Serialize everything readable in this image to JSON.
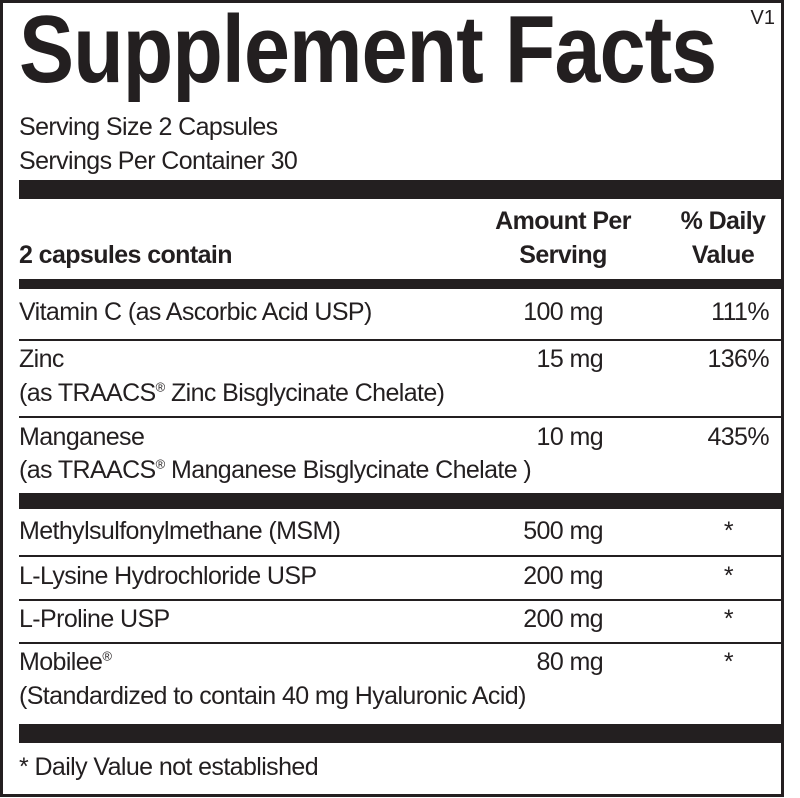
{
  "title": "Supplement Facts",
  "version": "V1",
  "serving_size": "Serving Size 2 Capsules",
  "servings_per_container": "Servings Per Container 30",
  "header": {
    "contains": "2 capsules contain",
    "amount_line1": "Amount Per",
    "amount_line2": "Serving",
    "dv_line1": "% Daily",
    "dv_line2": "Value"
  },
  "group1": [
    {
      "name": "Vitamin C (as Ascorbic Acid USP)",
      "amount": "100 mg",
      "dv": "111%"
    },
    {
      "name": "Zinc",
      "sub_pre": "(as TRAACS",
      "sub_post": " Zinc Bisglycinate Chelate)",
      "amount": "15 mg",
      "dv": "136%"
    },
    {
      "name": "Manganese",
      "sub_pre": "(as TRAACS",
      "sub_post": " Manganese Bisglycinate Chelate )",
      "amount": "10 mg",
      "dv": "435%"
    }
  ],
  "group2": [
    {
      "name": "Methylsulfonylmethane (MSM)",
      "amount": "500 mg",
      "dv": "*"
    },
    {
      "name": "L-Lysine Hydrochloride USP",
      "amount": "200 mg",
      "dv": "*"
    },
    {
      "name": "L-Proline USP",
      "amount": "200 mg",
      "dv": "*"
    },
    {
      "name": "Mobilee",
      "sub": "(Standardized to contain 40 mg Hyaluronic Acid)",
      "amount": "80 mg",
      "dv": "*"
    }
  ],
  "registered_mark": "®",
  "footnote": "* Daily Value not established"
}
